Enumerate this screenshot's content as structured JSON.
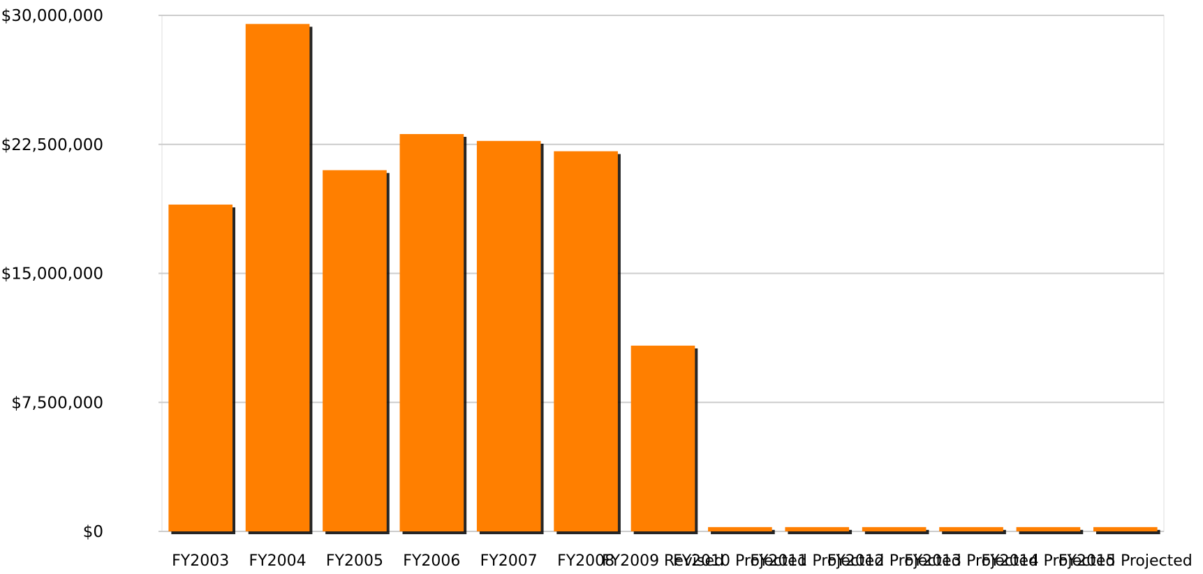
{
  "chart_data": {
    "type": "bar",
    "categories": [
      "FY2003",
      "FY2004",
      "FY2005",
      "FY2006",
      "FY2007",
      "FY2008",
      "FY2009 Revised",
      "FY2010 Projected",
      "FY2011 Projected",
      "FY2012 Projected",
      "FY2013 Projected",
      "FY2014 Projected",
      "FY2015 Projected"
    ],
    "values": [
      19000000,
      29500000,
      21000000,
      23100000,
      22700000,
      22100000,
      10800000,
      250000,
      250000,
      250000,
      250000,
      250000,
      250000
    ],
    "title": "",
    "xlabel": "",
    "ylabel": "",
    "ylim": [
      0,
      30000000
    ],
    "yticks": [
      0,
      7500000,
      15000000,
      22500000,
      30000000
    ],
    "ytick_labels": [
      "$0",
      "$7,500,000",
      "$15,000,000",
      "$22,500,000",
      "$30,000,000"
    ],
    "grid": true,
    "legend": "none",
    "bar_color": "#ff7f00",
    "shadow_color": "#000000",
    "grid_color": "#cccccc"
  }
}
